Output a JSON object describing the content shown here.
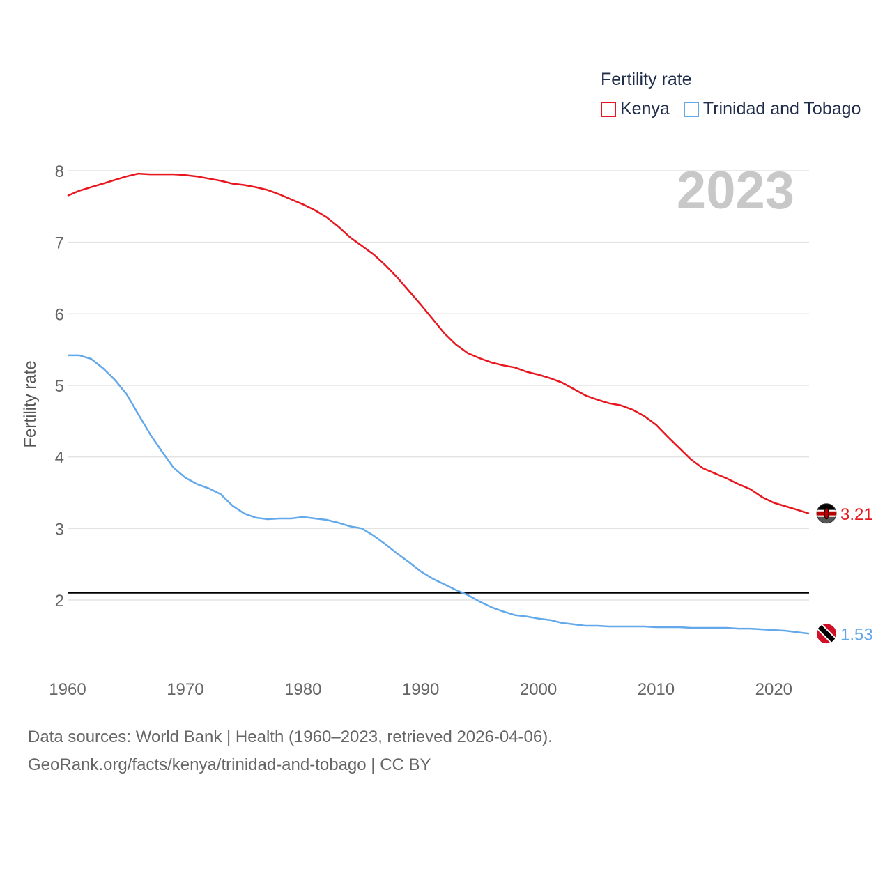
{
  "legend": {
    "title": "Fertility rate",
    "items": [
      {
        "name": "Kenya",
        "color": "#e8161e"
      },
      {
        "name": "Trinidad and Tobago",
        "color": "#62a8ea"
      }
    ]
  },
  "year_label": "2023",
  "source": {
    "line1": "Data sources: World Bank | Health (1960–2023, retrieved 2026-04-06).",
    "line2": "GeoRank.org/facts/kenya/trinidad-and-tobago | CC BY"
  },
  "chart_data": {
    "type": "line",
    "title": "Fertility rate",
    "xlabel": "",
    "ylabel": "Fertility rate",
    "xlim": [
      1960,
      2023
    ],
    "ylim": [
      1.0,
      8.0
    ],
    "xticks": [
      1960,
      1970,
      1980,
      1990,
      2000,
      2010,
      2020
    ],
    "yticks": [
      2,
      3,
      4,
      5,
      6,
      7,
      8
    ],
    "grid": true,
    "reference_line": {
      "y": 2.1,
      "color": "#000000"
    },
    "x": [
      1960,
      1961,
      1962,
      1963,
      1964,
      1965,
      1966,
      1967,
      1968,
      1969,
      1970,
      1971,
      1972,
      1973,
      1974,
      1975,
      1976,
      1977,
      1978,
      1979,
      1980,
      1981,
      1982,
      1983,
      1984,
      1985,
      1986,
      1987,
      1988,
      1989,
      1990,
      1991,
      1992,
      1993,
      1994,
      1995,
      1996,
      1997,
      1998,
      1999,
      2000,
      2001,
      2002,
      2003,
      2004,
      2005,
      2006,
      2007,
      2008,
      2009,
      2010,
      2011,
      2012,
      2013,
      2014,
      2015,
      2016,
      2017,
      2018,
      2019,
      2020,
      2021,
      2022,
      2023
    ],
    "series": [
      {
        "name": "Kenya",
        "color": "#e8161e",
        "end_label": "3.21",
        "values": [
          7.65,
          7.72,
          7.77,
          7.82,
          7.87,
          7.92,
          7.96,
          7.95,
          7.95,
          7.95,
          7.94,
          7.92,
          7.89,
          7.86,
          7.82,
          7.8,
          7.77,
          7.73,
          7.67,
          7.6,
          7.53,
          7.45,
          7.35,
          7.22,
          7.07,
          6.95,
          6.83,
          6.68,
          6.51,
          6.32,
          6.13,
          5.93,
          5.73,
          5.57,
          5.45,
          5.38,
          5.32,
          5.28,
          5.25,
          5.19,
          5.15,
          5.1,
          5.04,
          4.95,
          4.86,
          4.8,
          4.75,
          4.72,
          4.66,
          4.57,
          4.45,
          4.28,
          4.12,
          3.96,
          3.84,
          3.77,
          3.7,
          3.62,
          3.55,
          3.44,
          3.36,
          3.31,
          3.26,
          3.21
        ]
      },
      {
        "name": "Trinidad and Tobago",
        "color": "#62a8ea",
        "end_label": "1.53",
        "values": [
          5.42,
          5.42,
          5.37,
          5.24,
          5.08,
          4.88,
          4.6,
          4.32,
          4.08,
          3.85,
          3.71,
          3.62,
          3.56,
          3.48,
          3.32,
          3.21,
          3.15,
          3.13,
          3.14,
          3.14,
          3.16,
          3.14,
          3.12,
          3.08,
          3.03,
          3.0,
          2.9,
          2.78,
          2.65,
          2.53,
          2.4,
          2.3,
          2.22,
          2.14,
          2.07,
          1.98,
          1.9,
          1.84,
          1.79,
          1.77,
          1.74,
          1.72,
          1.68,
          1.66,
          1.64,
          1.64,
          1.63,
          1.63,
          1.63,
          1.63,
          1.62,
          1.62,
          1.62,
          1.61,
          1.61,
          1.61,
          1.61,
          1.6,
          1.6,
          1.59,
          1.58,
          1.57,
          1.55,
          1.53
        ]
      }
    ]
  }
}
